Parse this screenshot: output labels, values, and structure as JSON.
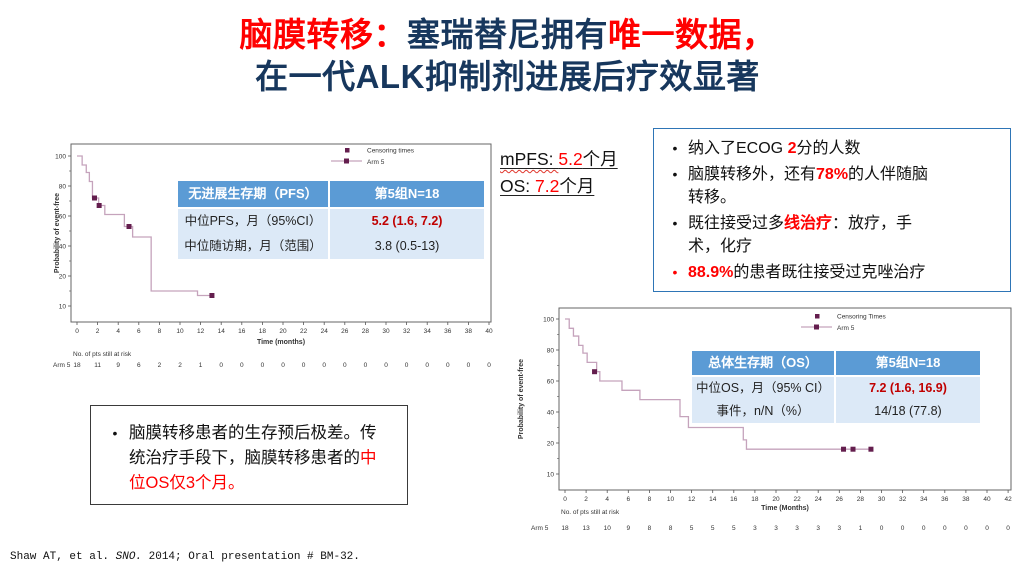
{
  "slide": {
    "title": {
      "line1": [
        {
          "text": "脑膜转移：",
          "color": "red"
        },
        {
          "text": "塞瑞替尼拥有",
          "color": "navy"
        },
        {
          "text": "唯一数据，",
          "color": "red"
        }
      ],
      "line2": [
        {
          "text": "在一代ALK抑制剂进展后疗效显著",
          "color": "navy"
        }
      ]
    },
    "mpfs_callout": {
      "line1": [
        {
          "text": "mPFS: ",
          "wavy": true
        },
        {
          "text": "5.2",
          "color": "red"
        },
        {
          "text": "个月"
        }
      ],
      "line2": [
        {
          "text": "OS: "
        },
        {
          "text": "7.2",
          "color": "red"
        },
        {
          "text": "个月"
        }
      ]
    },
    "right_box": {
      "bullets": [
        {
          "marker": "black",
          "segments": [
            {
              "text": "纳入了ECOG "
            },
            {
              "text": "2",
              "color": "red",
              "bold": true
            },
            {
              "text": "分的人数"
            }
          ]
        },
        {
          "marker": "black",
          "segments": [
            {
              "text": "脑膜转移外，还有"
            },
            {
              "text": "78%",
              "color": "red",
              "bold": true
            },
            {
              "text": "的人伴随脑转移。"
            }
          ]
        },
        {
          "marker": "black",
          "segments": [
            {
              "text": "既往接受过多"
            },
            {
              "text": "线治疗",
              "color": "red",
              "bold": true
            },
            {
              "text": "：放疗，手术，化疗"
            }
          ]
        },
        {
          "marker": "red",
          "segments": [
            {
              "text": "88.9%",
              "color": "red",
              "bold": true
            },
            {
              "text": "的患者既往接受过克唑治疗"
            }
          ]
        }
      ]
    },
    "bottom_box": {
      "segments": [
        {
          "text": "脑膜转移患者的生存预后极差。传统治疗手段下，脑膜转移患者的"
        },
        {
          "text": "中位OS仅3个月",
          "color": "red"
        },
        {
          "text": "。",
          "color": "red"
        }
      ]
    },
    "footnote": [
      {
        "text": "Shaw AT, et al. "
      },
      {
        "text": "SNO.",
        "italic": true
      },
      {
        "text": " 2014; Oral presentation # BM-32."
      }
    ]
  },
  "pfs_table": {
    "header": [
      "无进展生存期（PFS）",
      "第5组N=18"
    ],
    "rows": [
      {
        "label": "中位PFS，月（95%CI）",
        "value": "5.2 (1.6, 7.2)",
        "highlight": true
      },
      {
        "label": "中位随访期，月（范围）",
        "value": "3.8 (0.5-13)",
        "highlight": false
      }
    ]
  },
  "os_table": {
    "header": [
      "总体生存期（OS）",
      "第5组N=18"
    ],
    "rows": [
      {
        "label": "中位OS，月（95% CI）",
        "value": "7.2 (1.6, 16.9)",
        "highlight": true
      },
      {
        "label": "事件，n/N（%）",
        "value": "14/18 (77.8)",
        "highlight": false
      }
    ]
  },
  "chart_data": [
    {
      "type": "line",
      "name": "PFS Kaplan-Meier curve",
      "title": "",
      "xlabel": "Time (months)",
      "ylabel": "Probability of event-free",
      "xlim": [
        0,
        40
      ],
      "xtick_step": 2,
      "ytick_labels": [
        100,
        80,
        60,
        40,
        20,
        10
      ],
      "legend": [
        "Censoring times",
        "Arm 5"
      ],
      "series": [
        {
          "name": "Arm 5",
          "steps": [
            [
              0,
              100
            ],
            [
              0.5,
              94
            ],
            [
              0.9,
              89
            ],
            [
              1.2,
              83
            ],
            [
              1.5,
              72
            ],
            [
              2.1,
              67
            ],
            [
              2.7,
              61
            ],
            [
              4.6,
              53
            ],
            [
              5.4,
              46
            ],
            [
              7.2,
              15
            ],
            [
              11.7,
              13.5
            ],
            [
              13.3,
              13.5
            ]
          ]
        }
      ],
      "censors": [
        [
          1.7,
          72
        ],
        [
          2.15,
          67
        ],
        [
          5.05,
          53
        ],
        [
          13.1,
          13.5
        ]
      ],
      "at_risk": {
        "label": "No. of pts still at risk",
        "row_label": "Arm 5",
        "values": [
          18,
          11,
          9,
          6,
          2,
          2,
          1,
          0,
          0,
          0,
          0,
          0,
          0,
          0,
          0,
          0,
          0,
          0,
          0,
          0,
          0
        ]
      }
    },
    {
      "type": "line",
      "name": "OS Kaplan-Meier curve",
      "title": "",
      "xlabel": "Time (Months)",
      "ylabel": "Probability of event-free",
      "xlim": [
        0,
        42
      ],
      "xtick_step": 2,
      "ytick_labels": [
        100,
        80,
        60,
        40,
        20,
        10
      ],
      "legend": [
        "Censoring Times",
        "Arm 5"
      ],
      "series": [
        {
          "name": "Arm 5",
          "steps": [
            [
              0,
              100
            ],
            [
              0.4,
              94
            ],
            [
              0.8,
              89
            ],
            [
              1.3,
              83
            ],
            [
              1.7,
              78
            ],
            [
              2.1,
              72
            ],
            [
              3.0,
              66
            ],
            [
              3.3,
              60
            ],
            [
              5.4,
              54
            ],
            [
              7.1,
              48
            ],
            [
              10.9,
              37
            ],
            [
              11.7,
              30
            ],
            [
              16.9,
              22
            ],
            [
              17.2,
              18
            ],
            [
              29,
              18
            ]
          ]
        }
      ],
      "censors": [
        [
          2.8,
          66
        ],
        [
          26.4,
          18
        ],
        [
          27.3,
          18
        ],
        [
          29,
          18
        ]
      ],
      "at_risk": {
        "label": "No. of pts still at risk",
        "row_label": "Arm 5",
        "values": [
          18,
          13,
          10,
          9,
          8,
          8,
          5,
          5,
          5,
          3,
          3,
          3,
          3,
          3,
          1,
          0,
          0,
          0,
          0,
          0,
          0,
          0
        ]
      }
    }
  ],
  "colors": {
    "title_navy": "#17375D",
    "accent_red": "#FF0000",
    "table_value_red": "#C00000",
    "table_header_blue": "#5B9BD5",
    "table_body_blue": "#DCE9F7",
    "box_border_blue": "#2E75B6",
    "km_line": "#C5A3BC",
    "km_marker": "#641E4E"
  }
}
